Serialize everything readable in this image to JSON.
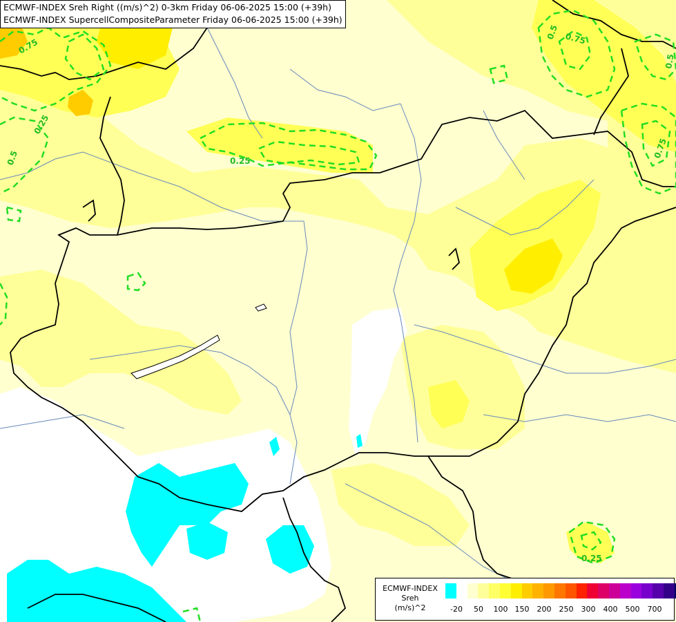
{
  "header": {
    "line1": "ECMWF-INDEX Sreh Right ((m/s)^2) 0-3km Friday 06-06-2025 15:00 (+39h)",
    "line2": "ECMWF-INDEX SupercellCompositeParameter Friday 06-06-2025 15:00 (+39h)"
  },
  "contour_labels": [
    {
      "text": "0.75"
    },
    {
      "text": "0.25"
    },
    {
      "text": "0.5"
    },
    {
      "text": "0.25"
    },
    {
      "text": "0.5"
    },
    {
      "text": "0.75"
    },
    {
      "text": "0.75"
    },
    {
      "text": "0.5"
    },
    {
      "text": "0.25"
    }
  ],
  "legend": {
    "title_line1": "ECMWF-INDEX",
    "title_line2": "Sreh",
    "title_line3": "(m/s)^2",
    "colors": [
      "#00ffff",
      "#ffffff",
      "#ffffd0",
      "#ffff99",
      "#ffff66",
      "#ffff33",
      "#ffee00",
      "#ffcc00",
      "#ffb300",
      "#ff9900",
      "#ff7700",
      "#ff5500",
      "#ff2200",
      "#ee0033",
      "#dd0066",
      "#cc0099",
      "#bb00cc",
      "#9900dd",
      "#7700cc",
      "#5500aa",
      "#330088",
      "#000066"
    ],
    "ticks": [
      "-20",
      "50",
      "100",
      "150",
      "200",
      "250",
      "300",
      "400",
      "500",
      "700"
    ]
  },
  "colors": {
    "low_cyan": "#00ffff",
    "pale": "#ffffd0",
    "light_yellow": "#ffff99",
    "yellow": "#ffff55",
    "strong_yellow": "#ffee00",
    "contour": "#22dd22",
    "border": "#000000",
    "river": "#6688bb"
  }
}
